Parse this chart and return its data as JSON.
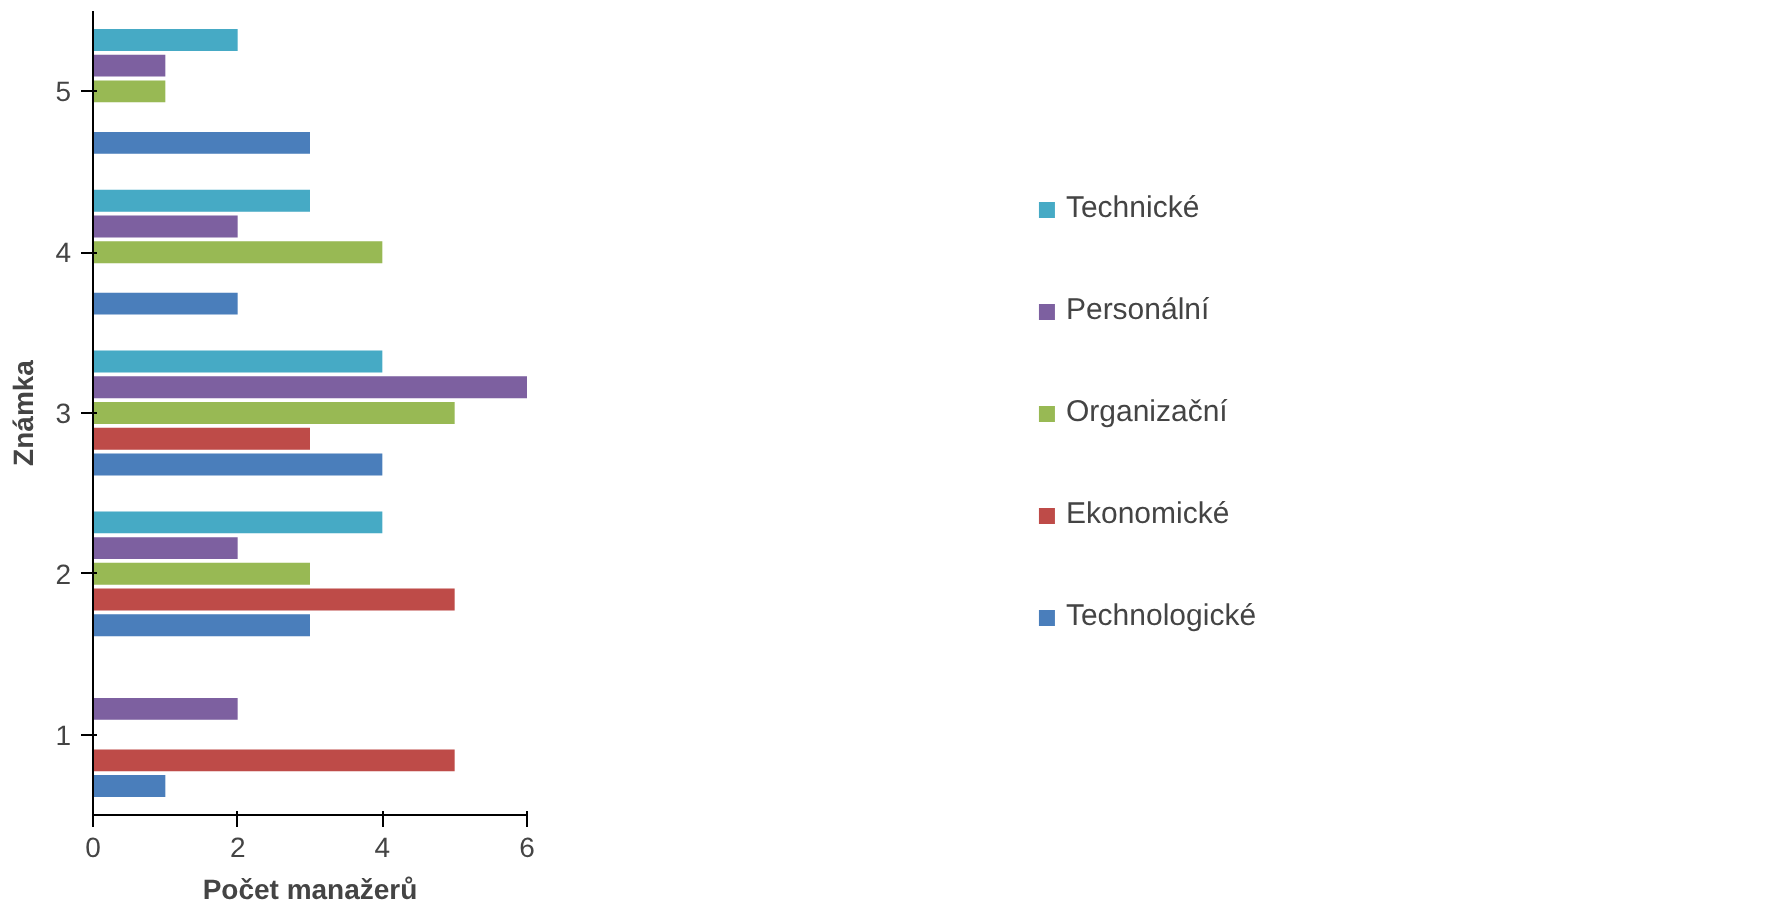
{
  "chart_data": {
    "type": "bar",
    "orientation": "horizontal",
    "xlabel": "Počet manažerů",
    "ylabel": "Známka",
    "categories": [
      "5",
      "4",
      "3",
      "2",
      "1"
    ],
    "series": [
      {
        "name": "Technologické",
        "color": "#4a7ebb",
        "values": [
          3,
          2,
          4,
          3,
          1
        ]
      },
      {
        "name": "Ekonomické",
        "color": "#be4b48",
        "values": [
          0,
          0,
          3,
          5,
          5
        ]
      },
      {
        "name": "Organizační",
        "color": "#98b954",
        "values": [
          1,
          4,
          5,
          3,
          0
        ]
      },
      {
        "name": "Personální",
        "color": "#7d60a0",
        "values": [
          1,
          2,
          6,
          2,
          2
        ]
      },
      {
        "name": "Technické",
        "color": "#46aac5",
        "values": [
          2,
          3,
          4,
          4,
          0
        ]
      }
    ],
    "xlim": [
      0,
      6
    ],
    "xticks": [
      0,
      2,
      4,
      6
    ],
    "grid": false,
    "legend": "right"
  }
}
